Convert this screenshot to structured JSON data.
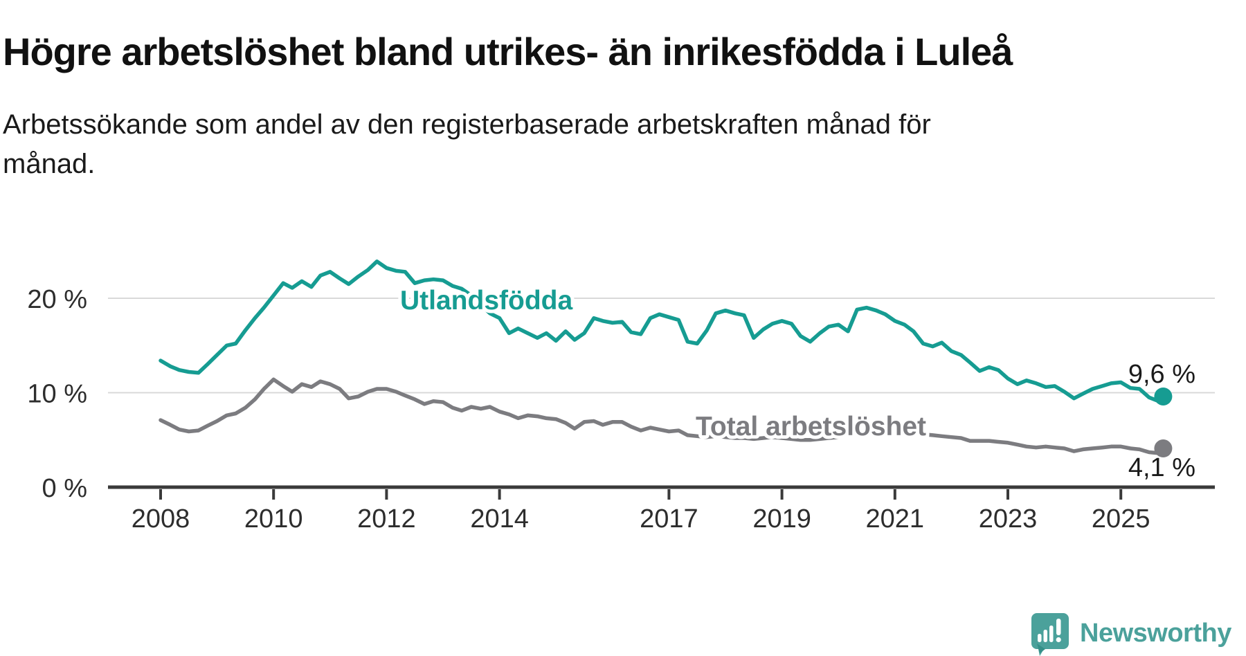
{
  "title": "Högre arbetslöshet bland utrikes- än inrikesfödda i Luleå",
  "subtitle": {
    "line1": "Arbetssökande som andel av den registerbaserade arbetskraften månad för",
    "line2": "månad.",
    "full": "Arbetssökande som andel av den registerbaserade arbetskraften månad för månad."
  },
  "branding": {
    "name": "Newsworthy",
    "icon": "newsworthy-speech-bubble-bar-chart-icon"
  },
  "colors": {
    "foreign_born_line": "#169c92",
    "total_line": "#7c7c80",
    "grid": "#d9d9d9",
    "axis": "#3a3a3a",
    "tick_label": "#2d2d2d",
    "title_text": "#111111",
    "end_label_text": "#1a1a1a",
    "logo": "#4ba19b",
    "background": "#ffffff"
  },
  "chart_data": {
    "type": "line",
    "title": "Högre arbetslöshet bland utrikes- än inrikesfödda i Luleå",
    "subtitle": "Arbetssökande som andel av den registerbaserade arbetskraften månad för månad.",
    "unit": "%",
    "grid": true,
    "legend": "inline-labels",
    "x_axis": {
      "ticks": [
        2008,
        2010,
        2012,
        2014,
        2017,
        2019,
        2021,
        2023,
        2025
      ],
      "range": [
        2007.1,
        2026.7
      ]
    },
    "y_axis": {
      "ticks": [
        {
          "value": 0,
          "label": "0 %"
        },
        {
          "value": 10,
          "label": "10 %"
        },
        {
          "value": 20,
          "label": "20 %"
        }
      ],
      "range": [
        0,
        25
      ]
    },
    "series": [
      {
        "id": "utlandsfodda",
        "name": "Utlandsfödda",
        "color": "#169c92",
        "end_label": "9,6 %",
        "end_value": 9.6,
        "points": [
          [
            2008.0,
            13.4
          ],
          [
            2008.17,
            12.8
          ],
          [
            2008.33,
            12.4
          ],
          [
            2008.5,
            12.2
          ],
          [
            2008.67,
            12.1
          ],
          [
            2008.83,
            13.0
          ],
          [
            2009.0,
            14.0
          ],
          [
            2009.17,
            15.0
          ],
          [
            2009.33,
            15.2
          ],
          [
            2009.5,
            16.6
          ],
          [
            2009.67,
            17.9
          ],
          [
            2009.83,
            19.0
          ],
          [
            2010.0,
            20.3
          ],
          [
            2010.17,
            21.6
          ],
          [
            2010.33,
            21.1
          ],
          [
            2010.5,
            21.8
          ],
          [
            2010.67,
            21.2
          ],
          [
            2010.83,
            22.4
          ],
          [
            2011.0,
            22.8
          ],
          [
            2011.17,
            22.1
          ],
          [
            2011.33,
            21.5
          ],
          [
            2011.5,
            22.3
          ],
          [
            2011.67,
            23.0
          ],
          [
            2011.83,
            23.9
          ],
          [
            2012.0,
            23.2
          ],
          [
            2012.17,
            22.9
          ],
          [
            2012.33,
            22.8
          ],
          [
            2012.5,
            21.6
          ],
          [
            2012.67,
            21.9
          ],
          [
            2012.83,
            22.0
          ],
          [
            2013.0,
            21.9
          ],
          [
            2013.17,
            21.3
          ],
          [
            2013.33,
            21.0
          ],
          [
            2013.5,
            20.3
          ],
          [
            2013.67,
            19.3
          ],
          [
            2013.83,
            18.4
          ],
          [
            2014.0,
            17.9
          ],
          [
            2014.17,
            16.3
          ],
          [
            2014.33,
            16.8
          ],
          [
            2014.5,
            16.3
          ],
          [
            2014.67,
            15.8
          ],
          [
            2014.83,
            16.3
          ],
          [
            2015.0,
            15.5
          ],
          [
            2015.17,
            16.5
          ],
          [
            2015.33,
            15.6
          ],
          [
            2015.5,
            16.3
          ],
          [
            2015.67,
            17.9
          ],
          [
            2015.83,
            17.6
          ],
          [
            2016.0,
            17.4
          ],
          [
            2016.17,
            17.5
          ],
          [
            2016.33,
            16.4
          ],
          [
            2016.5,
            16.2
          ],
          [
            2016.67,
            17.9
          ],
          [
            2016.83,
            18.3
          ],
          [
            2017.0,
            18.0
          ],
          [
            2017.17,
            17.7
          ],
          [
            2017.33,
            15.4
          ],
          [
            2017.5,
            15.2
          ],
          [
            2017.67,
            16.6
          ],
          [
            2017.83,
            18.4
          ],
          [
            2018.0,
            18.7
          ],
          [
            2018.17,
            18.4
          ],
          [
            2018.33,
            18.2
          ],
          [
            2018.5,
            15.8
          ],
          [
            2018.67,
            16.7
          ],
          [
            2018.83,
            17.3
          ],
          [
            2019.0,
            17.6
          ],
          [
            2019.17,
            17.3
          ],
          [
            2019.33,
            16.0
          ],
          [
            2019.5,
            15.4
          ],
          [
            2019.67,
            16.3
          ],
          [
            2019.83,
            17.0
          ],
          [
            2020.0,
            17.2
          ],
          [
            2020.17,
            16.5
          ],
          [
            2020.33,
            18.8
          ],
          [
            2020.5,
            19.0
          ],
          [
            2020.67,
            18.7
          ],
          [
            2020.83,
            18.3
          ],
          [
            2021.0,
            17.6
          ],
          [
            2021.17,
            17.2
          ],
          [
            2021.33,
            16.5
          ],
          [
            2021.5,
            15.2
          ],
          [
            2021.67,
            14.9
          ],
          [
            2021.83,
            15.3
          ],
          [
            2022.0,
            14.4
          ],
          [
            2022.17,
            14.0
          ],
          [
            2022.33,
            13.2
          ],
          [
            2022.5,
            12.3
          ],
          [
            2022.67,
            12.7
          ],
          [
            2022.83,
            12.4
          ],
          [
            2023.0,
            11.5
          ],
          [
            2023.17,
            10.9
          ],
          [
            2023.33,
            11.3
          ],
          [
            2023.5,
            11.0
          ],
          [
            2023.67,
            10.6
          ],
          [
            2023.83,
            10.7
          ],
          [
            2024.0,
            10.1
          ],
          [
            2024.17,
            9.4
          ],
          [
            2024.33,
            9.9
          ],
          [
            2024.5,
            10.4
          ],
          [
            2024.67,
            10.7
          ],
          [
            2024.83,
            11.0
          ],
          [
            2025.0,
            11.1
          ],
          [
            2025.17,
            10.5
          ],
          [
            2025.33,
            10.4
          ],
          [
            2025.5,
            9.5
          ],
          [
            2025.67,
            9.1
          ],
          [
            2025.75,
            9.6
          ]
        ]
      },
      {
        "id": "total",
        "name": "Total arbetslöshet",
        "color": "#7c7c80",
        "end_label": "4,1 %",
        "end_value": 4.1,
        "points": [
          [
            2008.0,
            7.1
          ],
          [
            2008.17,
            6.6
          ],
          [
            2008.33,
            6.1
          ],
          [
            2008.5,
            5.9
          ],
          [
            2008.67,
            6.0
          ],
          [
            2008.83,
            6.5
          ],
          [
            2009.0,
            7.0
          ],
          [
            2009.17,
            7.6
          ],
          [
            2009.33,
            7.8
          ],
          [
            2009.5,
            8.4
          ],
          [
            2009.67,
            9.3
          ],
          [
            2009.83,
            10.4
          ],
          [
            2010.0,
            11.4
          ],
          [
            2010.17,
            10.7
          ],
          [
            2010.33,
            10.1
          ],
          [
            2010.5,
            10.9
          ],
          [
            2010.67,
            10.6
          ],
          [
            2010.83,
            11.2
          ],
          [
            2011.0,
            10.9
          ],
          [
            2011.17,
            10.4
          ],
          [
            2011.33,
            9.4
          ],
          [
            2011.5,
            9.6
          ],
          [
            2011.67,
            10.1
          ],
          [
            2011.83,
            10.4
          ],
          [
            2012.0,
            10.4
          ],
          [
            2012.17,
            10.1
          ],
          [
            2012.33,
            9.7
          ],
          [
            2012.5,
            9.3
          ],
          [
            2012.67,
            8.8
          ],
          [
            2012.83,
            9.1
          ],
          [
            2013.0,
            9.0
          ],
          [
            2013.17,
            8.4
          ],
          [
            2013.33,
            8.1
          ],
          [
            2013.5,
            8.5
          ],
          [
            2013.67,
            8.3
          ],
          [
            2013.83,
            8.5
          ],
          [
            2014.0,
            8.0
          ],
          [
            2014.17,
            7.7
          ],
          [
            2014.33,
            7.3
          ],
          [
            2014.5,
            7.6
          ],
          [
            2014.67,
            7.5
          ],
          [
            2014.83,
            7.3
          ],
          [
            2015.0,
            7.2
          ],
          [
            2015.17,
            6.8
          ],
          [
            2015.33,
            6.2
          ],
          [
            2015.5,
            6.9
          ],
          [
            2015.67,
            7.0
          ],
          [
            2015.83,
            6.6
          ],
          [
            2016.0,
            6.9
          ],
          [
            2016.17,
            6.9
          ],
          [
            2016.33,
            6.4
          ],
          [
            2016.5,
            6.0
          ],
          [
            2016.67,
            6.3
          ],
          [
            2016.83,
            6.1
          ],
          [
            2017.0,
            5.9
          ],
          [
            2017.17,
            6.0
          ],
          [
            2017.33,
            5.5
          ],
          [
            2017.5,
            5.4
          ],
          [
            2017.67,
            5.3
          ],
          [
            2017.83,
            5.4
          ],
          [
            2018.0,
            5.3
          ],
          [
            2018.17,
            5.2
          ],
          [
            2018.33,
            5.2
          ],
          [
            2018.5,
            5.1
          ],
          [
            2018.67,
            5.2
          ],
          [
            2018.83,
            5.3
          ],
          [
            2019.0,
            5.2
          ],
          [
            2019.17,
            5.1
          ],
          [
            2019.33,
            5.0
          ],
          [
            2019.5,
            5.0
          ],
          [
            2019.67,
            5.1
          ],
          [
            2019.83,
            5.2
          ],
          [
            2020.0,
            5.3
          ],
          [
            2020.17,
            5.6
          ],
          [
            2020.33,
            6.3
          ],
          [
            2020.5,
            6.6
          ],
          [
            2020.67,
            6.5
          ],
          [
            2020.83,
            6.3
          ],
          [
            2021.0,
            6.1
          ],
          [
            2021.17,
            5.9
          ],
          [
            2021.33,
            5.7
          ],
          [
            2021.5,
            5.6
          ],
          [
            2021.67,
            5.5
          ],
          [
            2021.83,
            5.4
          ],
          [
            2022.0,
            5.3
          ],
          [
            2022.17,
            5.2
          ],
          [
            2022.33,
            4.9
          ],
          [
            2022.5,
            4.9
          ],
          [
            2022.67,
            4.9
          ],
          [
            2022.83,
            4.8
          ],
          [
            2023.0,
            4.7
          ],
          [
            2023.17,
            4.5
          ],
          [
            2023.33,
            4.3
          ],
          [
            2023.5,
            4.2
          ],
          [
            2023.67,
            4.3
          ],
          [
            2023.83,
            4.2
          ],
          [
            2024.0,
            4.1
          ],
          [
            2024.17,
            3.8
          ],
          [
            2024.33,
            4.0
          ],
          [
            2024.5,
            4.1
          ],
          [
            2024.67,
            4.2
          ],
          [
            2024.83,
            4.3
          ],
          [
            2025.0,
            4.3
          ],
          [
            2025.17,
            4.1
          ],
          [
            2025.33,
            4.0
          ],
          [
            2025.5,
            3.7
          ],
          [
            2025.67,
            3.6
          ],
          [
            2025.75,
            4.1
          ]
        ]
      }
    ]
  }
}
